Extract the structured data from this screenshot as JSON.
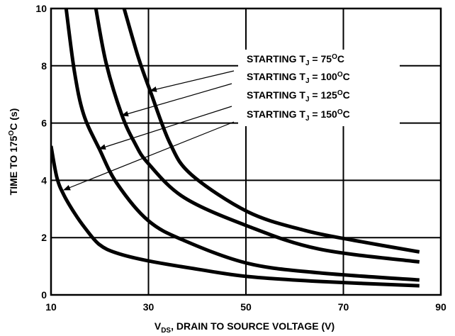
{
  "chart_data": {
    "type": "line",
    "x_label": [
      "V",
      "DS",
      ", DRAIN TO SOURCE VOLTAGE (V)"
    ],
    "y_label": [
      "TIME TO 175",
      "O",
      "C (s)"
    ],
    "xlim": [
      10,
      90
    ],
    "xticks": [
      10,
      30,
      50,
      70,
      90
    ],
    "ylim": [
      0,
      10
    ],
    "yticks": [
      0,
      2,
      4,
      6,
      8,
      10
    ],
    "grid": true,
    "series": [
      {
        "label": [
          "STARTING T",
          "J",
          " = 75",
          "O",
          "C"
        ],
        "color": "#000000",
        "x": [
          25,
          27.9,
          30.4,
          34.4,
          38.8,
          50.4,
          62.1,
          72.3,
          85.6
        ],
        "values": [
          10,
          8.3,
          7.1,
          5.3,
          4.2,
          2.9,
          2.25,
          1.9,
          1.5
        ]
      },
      {
        "label": [
          "STARTING T",
          "J",
          " = 100",
          "O",
          "C"
        ],
        "color": "#000000",
        "x": [
          19.2,
          21.3,
          24.5,
          27.2,
          29.9,
          37.3,
          50.4,
          65,
          85.6
        ],
        "values": [
          10,
          8.1,
          6.3,
          5.3,
          4.6,
          3.4,
          2.4,
          1.6,
          1.15
        ]
      },
      {
        "label": [
          "STARTING T",
          "J",
          " = 125",
          "O",
          "C"
        ],
        "color": "#000000",
        "x": [
          13.1,
          14.8,
          16.7,
          19.9,
          23.5,
          29.9,
          37.3,
          50.4,
          65,
          85.6
        ],
        "values": [
          10,
          7.8,
          6.3,
          5.1,
          3.9,
          2.6,
          1.9,
          1.1,
          0.77,
          0.52
        ]
      },
      {
        "label": [
          "STARTING T",
          "J",
          " = 150",
          "O",
          "C"
        ],
        "color": "#000000",
        "x": [
          10,
          11.2,
          12.6,
          14.8,
          17,
          19.9,
          23.5,
          29.9,
          40.3,
          50.4,
          65,
          85.6
        ],
        "values": [
          5.2,
          4.1,
          3.5,
          2.86,
          2.33,
          1.76,
          1.46,
          1.19,
          0.89,
          0.64,
          0.47,
          0.32
        ]
      }
    ]
  }
}
